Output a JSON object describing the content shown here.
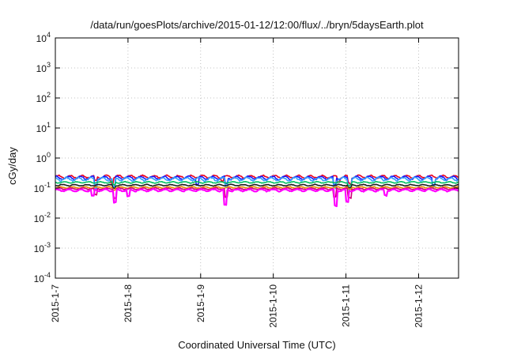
{
  "chart_data": {
    "type": "line",
    "title": "/data/run/goesPlots/archive/2015-01-12/12:00/flux/../bryn/5daysEarth.plot",
    "xlabel": "Coordinated Universal Time (UTC)",
    "ylabel": "cGy/day",
    "yscale": "log",
    "ylim": [
      0.0001,
      10000
    ],
    "xlim": [
      0,
      5.55
    ],
    "grid": true,
    "x_ticks": [
      {
        "value": 0,
        "label": "2015-1-7"
      },
      {
        "value": 1,
        "label": "2015-1-8"
      },
      {
        "value": 2,
        "label": "2015-1-9"
      },
      {
        "value": 3,
        "label": "2015-1-10"
      },
      {
        "value": 4,
        "label": "2015-1-11"
      },
      {
        "value": 5,
        "label": "2015-1-12"
      }
    ],
    "y_ticks": [
      {
        "value": 0.0001,
        "base": "10",
        "exp": "-4"
      },
      {
        "value": 0.001,
        "base": "10",
        "exp": "-3"
      },
      {
        "value": 0.01,
        "base": "10",
        "exp": "-2"
      },
      {
        "value": 0.1,
        "base": "10",
        "exp": "-1"
      },
      {
        "value": 1,
        "base": "10",
        "exp": "0"
      },
      {
        "value": 10,
        "base": "10",
        "exp": "1"
      },
      {
        "value": 100,
        "base": "10",
        "exp": "2"
      },
      {
        "value": 1000,
        "base": "10",
        "exp": "3"
      },
      {
        "value": 10000,
        "base": "10",
        "exp": "4"
      }
    ],
    "series": [
      {
        "color": "#e8001c",
        "level": 0.24,
        "jitter": 0.1,
        "dips": [
          [
            0.55,
            0.7
          ],
          [
            0.78,
            0.65
          ],
          [
            2.3,
            0.75
          ],
          [
            3.9,
            0.7
          ],
          [
            4.05,
            0.6
          ]
        ]
      },
      {
        "color": "#1a1aff",
        "level": 0.22,
        "jitter": 0.12,
        "dips": [
          [
            0.55,
            0.55
          ],
          [
            0.8,
            0.5
          ],
          [
            1.95,
            0.6
          ],
          [
            2.35,
            0.6
          ],
          [
            3.85,
            0.55
          ],
          [
            4.05,
            0.5
          ],
          [
            5.2,
            0.6
          ]
        ]
      },
      {
        "color": "#30a0ff",
        "level": 0.2,
        "jitter": 0.12,
        "dips": [
          [
            0.55,
            0.55
          ],
          [
            0.8,
            0.5
          ],
          [
            2.35,
            0.55
          ],
          [
            3.85,
            0.55
          ],
          [
            4.05,
            0.5
          ],
          [
            5.2,
            0.6
          ]
        ]
      },
      {
        "color": "#00c060",
        "level": 0.155,
        "jitter": 0.05,
        "dips": [
          [
            0.8,
            0.8
          ],
          [
            4.05,
            0.8
          ]
        ]
      },
      {
        "color": "#202020",
        "level": 0.125,
        "jitter": 0.05,
        "dips": [
          [
            0.8,
            0.8
          ],
          [
            4.05,
            0.8
          ]
        ]
      },
      {
        "color": "#e89000",
        "level": 0.105,
        "jitter": 0.05,
        "dips": [
          [
            0.8,
            0.85
          ],
          [
            4.05,
            0.85
          ]
        ]
      },
      {
        "color": "#d0007a",
        "level": 0.095,
        "jitter": 0.06,
        "dips": [
          [
            0.55,
            0.6
          ],
          [
            0.82,
            0.5
          ],
          [
            2.35,
            0.5
          ],
          [
            3.85,
            0.5
          ],
          [
            4.05,
            0.5
          ]
        ]
      },
      {
        "color": "#ff00ff",
        "level": 0.085,
        "jitter": 0.08,
        "dips": [
          [
            0.52,
            0.6
          ],
          [
            0.82,
            0.38
          ],
          [
            1.0,
            0.6
          ],
          [
            2.34,
            0.3
          ],
          [
            3.86,
            0.3
          ],
          [
            4.02,
            0.4
          ],
          [
            4.55,
            0.7
          ]
        ]
      }
    ]
  }
}
